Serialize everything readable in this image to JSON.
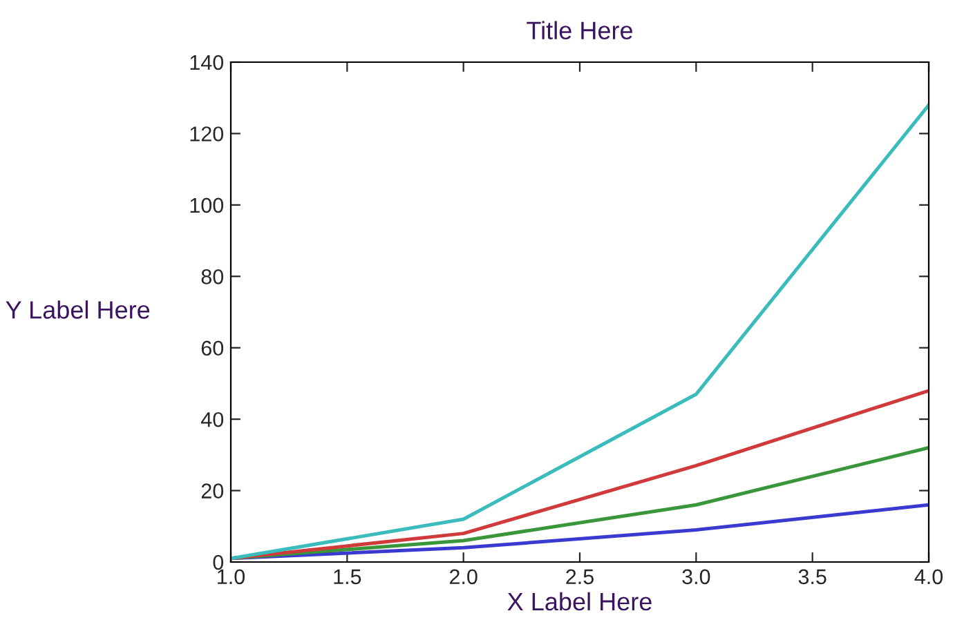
{
  "chart_data": {
    "type": "line",
    "title": "Title Here",
    "xlabel": "X Label Here",
    "ylabel": "Y Label Here",
    "x": [
      1,
      2,
      3,
      4
    ],
    "series": [
      {
        "color": "#3a3ad0",
        "values": [
          1,
          4,
          9,
          16
        ]
      },
      {
        "color": "#3a963a",
        "values": [
          1,
          6,
          16,
          32
        ]
      },
      {
        "color": "#d03a3a",
        "values": [
          1,
          8,
          27,
          48
        ]
      },
      {
        "color": "#3abcbc",
        "values": [
          1,
          12,
          47,
          128
        ]
      }
    ],
    "xlim": [
      1.0,
      4.0
    ],
    "xticks": [
      {
        "value": 1.0,
        "label": "1.0"
      },
      {
        "value": 1.5,
        "label": "1.5"
      },
      {
        "value": 2.0,
        "label": "2.0"
      },
      {
        "value": 2.5,
        "label": "2.5"
      },
      {
        "value": 3.0,
        "label": "3.0"
      },
      {
        "value": 3.5,
        "label": "3.5"
      },
      {
        "value": 4.0,
        "label": "4.0"
      }
    ],
    "ylim": [
      0,
      140
    ],
    "yticks": [
      0,
      20,
      40,
      60,
      80,
      100,
      120,
      140
    ],
    "grid": false,
    "marker": "none",
    "line_style": "solid"
  }
}
